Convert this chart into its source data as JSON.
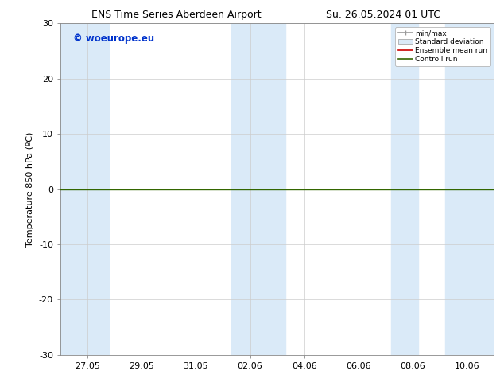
{
  "title_left": "ENS Time Series Aberdeen Airport",
  "title_right": "Su. 26.05.2024 01 UTC",
  "ylabel": "Temperature 850 hPa (ºC)",
  "ylim": [
    -30,
    30
  ],
  "yticks": [
    -30,
    -20,
    -10,
    0,
    10,
    20,
    30
  ],
  "xtick_labels": [
    "27.05",
    "29.05",
    "31.05",
    "02.06",
    "04.06",
    "06.06",
    "08.06",
    "10.06"
  ],
  "watermark": "© woeurope.eu",
  "watermark_color": "#0033cc",
  "bg_color": "#ffffff",
  "plot_bg_color": "#ffffff",
  "shade_color": "#daeaf8",
  "zero_line_color": "#336600",
  "zero_line_y": 0,
  "legend_labels": [
    "min/max",
    "Standard deviation",
    "Ensemble mean run",
    "Controll run"
  ],
  "legend_colors_line": [
    "#999999",
    "#bbcfe8",
    "#cc0000",
    "#336600"
  ],
  "grid_color": "#cccccc",
  "spine_color": "#888888",
  "title_fontsize": 9,
  "axis_fontsize": 8,
  "tick_fontsize": 8
}
